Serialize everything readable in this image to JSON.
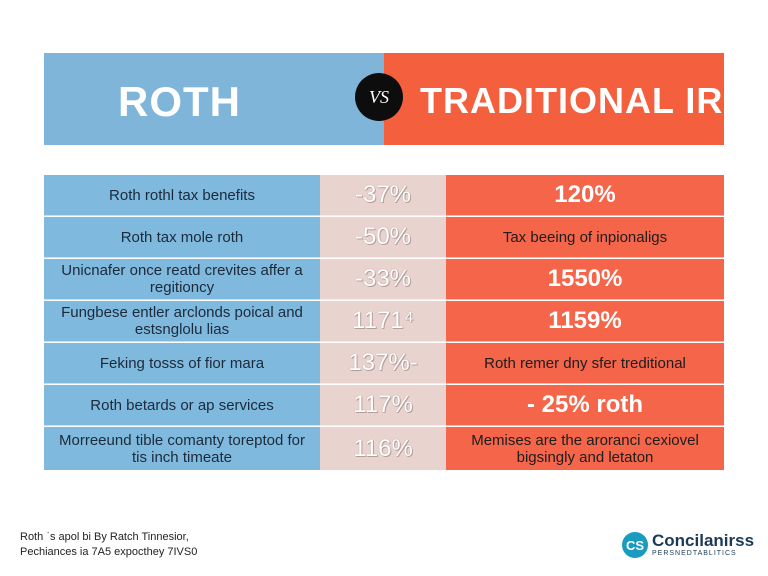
{
  "header": {
    "left_title": "ROTH",
    "vs": "VS",
    "right_title": "TRADITIONAL IRA",
    "left_color": "#7fb5d9",
    "right_color": "#f4603d"
  },
  "rows": [
    {
      "left": "Roth rothl tax benefits",
      "middle": "-37%",
      "right": "120%"
    },
    {
      "left": "Roth tax mole roth",
      "middle": "-50%",
      "right": "Tax beeing of inpionaligs"
    },
    {
      "left": "Unicnafer once reatd crevites affer a regitioncy",
      "middle": "-33%",
      "right": "1550%"
    },
    {
      "left": "Fungbese entler arclonds poical and estsnglolu lias",
      "middle": "1171⁴",
      "right": "1159%"
    },
    {
      "left": "Feking tosss of fior mara",
      "middle": "137%-",
      "right": "Roth remer dny sfer treditional"
    },
    {
      "left": "Roth betards or ap services",
      "middle": "117%",
      "right": "- 25% roth"
    },
    {
      "left": "Morreeund tible comanty toreptod for tis inch timeate",
      "middle": "116%",
      "right": "Memises are the aroranci cexiovel bigsingly and letaton"
    }
  ],
  "footer": {
    "line1": "Roth ˈs apol bi By Ratch Tinnesior,",
    "line2": "Pechiances ia 7A5 expocthey 7IVS0"
  },
  "logo": {
    "mark": "CS",
    "name": "Concilanirss",
    "sub": "PERSNEDTABLITICS"
  }
}
